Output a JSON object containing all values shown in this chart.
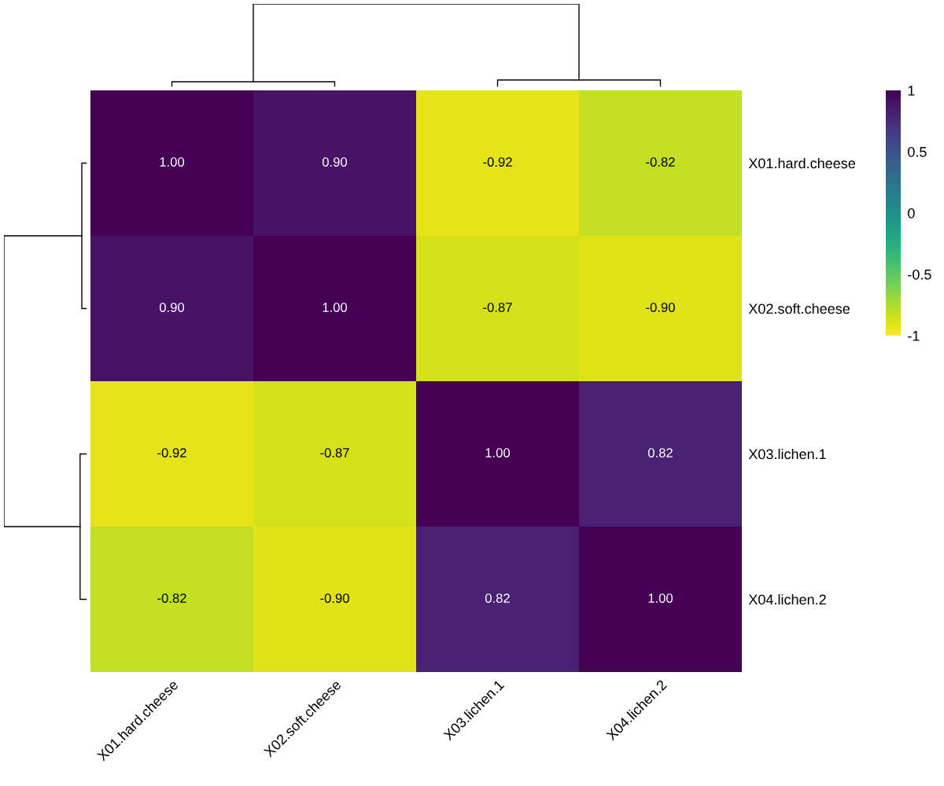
{
  "chart_data": {
    "type": "heatmap",
    "categories": [
      "X01.hard.cheese",
      "X02.soft.cheese",
      "X03.lichen.1",
      "X04.lichen.2"
    ],
    "y_categories": [
      "X01.hard.cheese",
      "X02.soft.cheese",
      "X03.lichen.1",
      "X04.lichen.2"
    ],
    "cells": [
      [
        1.0,
        0.9,
        -0.92,
        -0.82
      ],
      [
        0.9,
        1.0,
        -0.87,
        -0.9
      ],
      [
        -0.92,
        -0.87,
        1.0,
        0.82
      ],
      [
        -0.82,
        -0.9,
        0.82,
        1.0
      ]
    ],
    "cell_labels": [
      [
        "1.00",
        "0.90",
        "-0.92",
        "-0.82"
      ],
      [
        "0.90",
        "1.00",
        "-0.87",
        "-0.90"
      ],
      [
        "-0.92",
        "-0.87",
        "1.00",
        "0.82"
      ],
      [
        "-0.82",
        "-0.90",
        "0.82",
        "1.00"
      ]
    ],
    "clim": [
      -1,
      1
    ],
    "cticks": [
      {
        "value": -1,
        "label": "-1"
      },
      {
        "value": -0.5,
        "label": "-0.5"
      },
      0,
      0.5,
      1
    ]
  }
}
